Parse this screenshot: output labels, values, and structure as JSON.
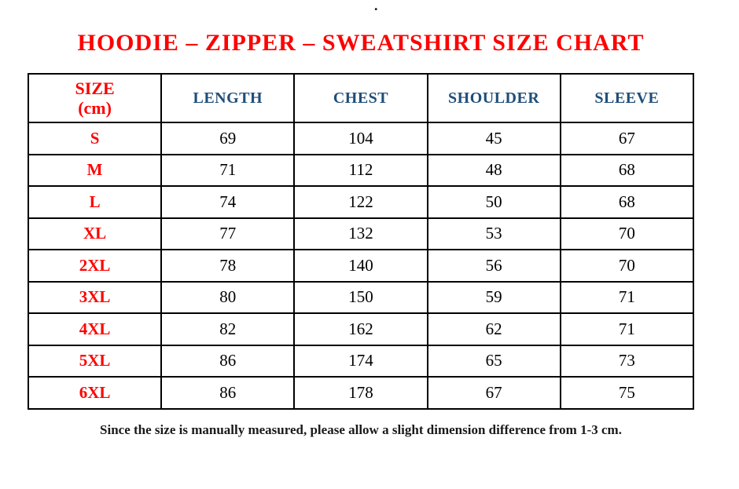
{
  "page": {
    "top_mark": "."
  },
  "title": "HOODIE – ZIPPER – SWEATSHIRT SIZE CHART",
  "table": {
    "size_header": {
      "line1": "SIZE",
      "line2": "(cm)"
    },
    "columns": [
      "LENGTH",
      "CHEST",
      "SHOULDER",
      "SLEEVE"
    ],
    "rows": [
      {
        "size": "S",
        "values": [
          "69",
          "104",
          "45",
          "67"
        ]
      },
      {
        "size": "M",
        "values": [
          "71",
          "112",
          "48",
          "68"
        ]
      },
      {
        "size": "L",
        "values": [
          "74",
          "122",
          "50",
          "68"
        ]
      },
      {
        "size": "XL",
        "values": [
          "77",
          "132",
          "53",
          "70"
        ]
      },
      {
        "size": "2XL",
        "values": [
          "78",
          "140",
          "56",
          "70"
        ]
      },
      {
        "size": "3XL",
        "values": [
          "80",
          "150",
          "59",
          "71"
        ]
      },
      {
        "size": "4XL",
        "values": [
          "82",
          "162",
          "62",
          "71"
        ]
      },
      {
        "size": "5XL",
        "values": [
          "86",
          "174",
          "65",
          "73"
        ]
      },
      {
        "size": "6XL",
        "values": [
          "86",
          "178",
          "67",
          "75"
        ]
      }
    ]
  },
  "note": "Since the size is manually measured, please allow a slight dimension difference from 1-3 cm.",
  "colors": {
    "accent_red": "#FF0000",
    "header_blue": "#1F4E79",
    "text_black": "#000000",
    "border": "#000000",
    "background": "#FFFFFF"
  }
}
